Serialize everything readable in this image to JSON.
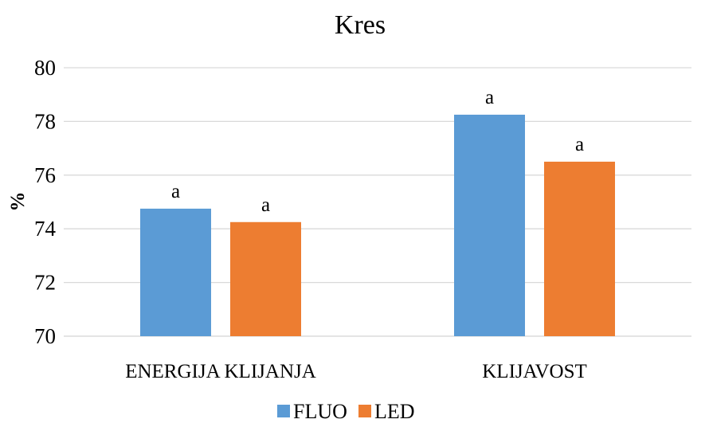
{
  "chart_data": {
    "type": "bar",
    "title": "Kres",
    "xlabel": "",
    "ylabel": "%",
    "categories": [
      "ENERGIJA KLIJANJA",
      "KLIJAVOST"
    ],
    "series": [
      {
        "name": "FLUO",
        "values": [
          74.75,
          78.25
        ],
        "labels": [
          "a",
          "a"
        ],
        "color": "#5B9BD5"
      },
      {
        "name": "LED",
        "values": [
          74.25,
          76.5
        ],
        "labels": [
          "a",
          "a"
        ],
        "color": "#ED7D31"
      }
    ],
    "ylim": [
      70,
      80
    ],
    "yticks": [
      "70",
      "72",
      "74",
      "76",
      "78",
      "80"
    ],
    "grid": true,
    "gridColor": "#D9D9D9",
    "legend_position": "bottom"
  }
}
